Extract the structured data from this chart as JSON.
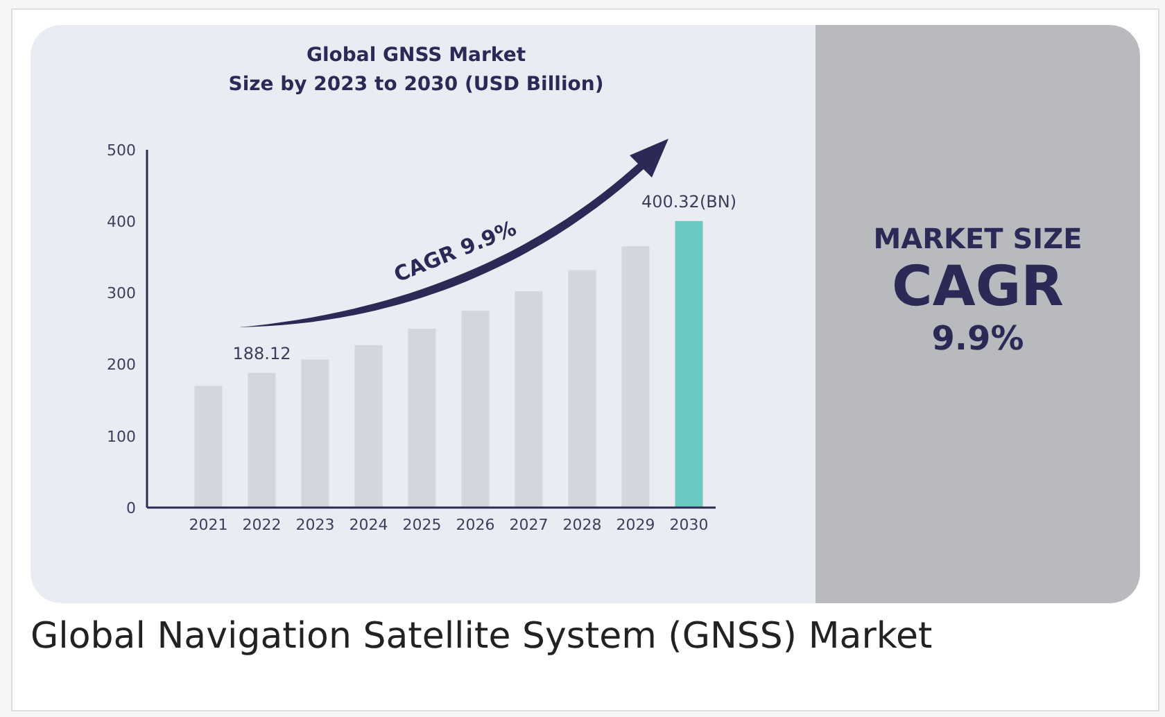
{
  "chart_data": {
    "type": "bar",
    "title": "Global GNSS Market\nSize by 2023 to 2030 (USD Billion)",
    "categories": [
      "2021",
      "2022",
      "2023",
      "2024",
      "2025",
      "2026",
      "2027",
      "2028",
      "2029",
      "2030"
    ],
    "values": [
      170,
      188.12,
      207,
      227,
      250,
      275,
      302,
      332,
      365,
      400.32
    ],
    "colors": [
      "#d1d7dd",
      "#d1d7dd",
      "#d1d7dd",
      "#d1d7dd",
      "#d1d7dd",
      "#d1d7dd",
      "#d1d7dd",
      "#d1d7dd",
      "#d1d7dd",
      "#6cc9c1"
    ],
    "value_labels": [
      null,
      "188.12",
      null,
      null,
      null,
      null,
      null,
      null,
      null,
      "400.32(BN)"
    ],
    "ylim": [
      0,
      500
    ],
    "yticks": [
      0,
      100,
      200,
      300,
      400,
      500
    ],
    "grid": false,
    "legend": false,
    "annotations": [
      "CAGR 9.9%",
      "MARKET SIZE",
      "CAGR",
      "9.9%",
      "Global Navigation Satellite System (GNSS) Market"
    ]
  }
}
